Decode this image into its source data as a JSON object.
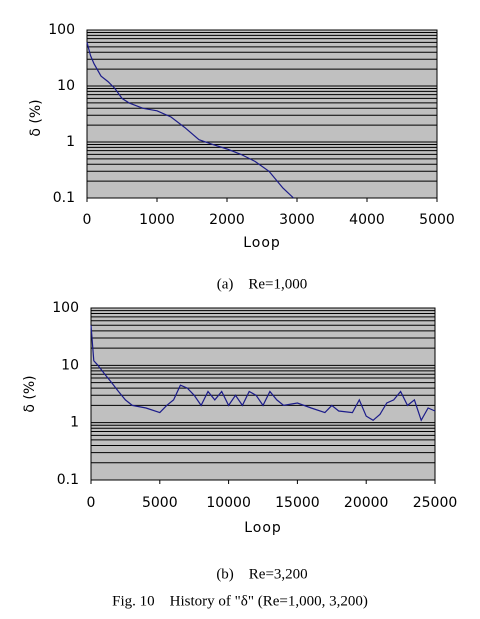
{
  "chart_data": [
    {
      "type": "line",
      "caption": "(a)　Re=1,000",
      "xlabel": "Loop",
      "ylabel": "δ (%)",
      "log_scale": true,
      "grid": "minor",
      "color": "#1c1c8a",
      "x": [
        0,
        50,
        100,
        200,
        300,
        400,
        500,
        600,
        800,
        1000,
        1200,
        1400,
        1600,
        1800,
        2000,
        2200,
        2400,
        2600,
        2800,
        2950
      ],
      "values": [
        60,
        35,
        25,
        15,
        12,
        9,
        6,
        5,
        4,
        3.6,
        2.8,
        1.8,
        1.1,
        0.9,
        0.75,
        0.6,
        0.45,
        0.3,
        0.15,
        0.1
      ],
      "xlim": [
        0,
        5000
      ],
      "xticks": [
        0,
        1000,
        2000,
        3000,
        4000,
        5000
      ],
      "ylim": [
        0.1,
        100
      ],
      "yticks": [
        0.1,
        1,
        10,
        100
      ]
    },
    {
      "type": "line",
      "caption": "(b)　Re=3,200",
      "xlabel": "Loop",
      "ylabel": "δ (%)",
      "log_scale": true,
      "grid": "minor",
      "color": "#1c1c8a",
      "x": [
        0,
        200,
        500,
        1000,
        1500,
        2000,
        2500,
        3000,
        4000,
        5000,
        5500,
        6000,
        6500,
        7000,
        7500,
        8000,
        8500,
        9000,
        9500,
        10000,
        10500,
        11000,
        11500,
        12000,
        12500,
        13000,
        13500,
        14000,
        15000,
        16000,
        17000,
        17500,
        18000,
        19000,
        19500,
        20000,
        20500,
        21000,
        21500,
        22000,
        22500,
        23000,
        23500,
        24000,
        24500,
        25000
      ],
      "values": [
        50,
        12,
        10,
        7,
        5,
        3.5,
        2.5,
        2,
        1.8,
        1.5,
        2,
        2.5,
        4.5,
        4,
        3,
        2,
        3.5,
        2.5,
        3.5,
        2,
        3,
        2,
        3.5,
        3,
        2,
        3.5,
        2.5,
        2,
        2.2,
        1.8,
        1.5,
        2,
        1.6,
        1.5,
        2.5,
        1.3,
        1.1,
        1.4,
        2.2,
        2.5,
        3.5,
        2,
        2.5,
        1.1,
        1.8,
        1.6
      ],
      "xlim": [
        0,
        25000
      ],
      "xticks": [
        0,
        5000,
        10000,
        15000,
        20000,
        25000
      ],
      "ylim": [
        0.1,
        100
      ],
      "yticks": [
        0.1,
        1,
        10,
        100
      ]
    }
  ],
  "figure_caption": "Fig. 10　History of \"δ\" (Re=1,000, 3,200)"
}
